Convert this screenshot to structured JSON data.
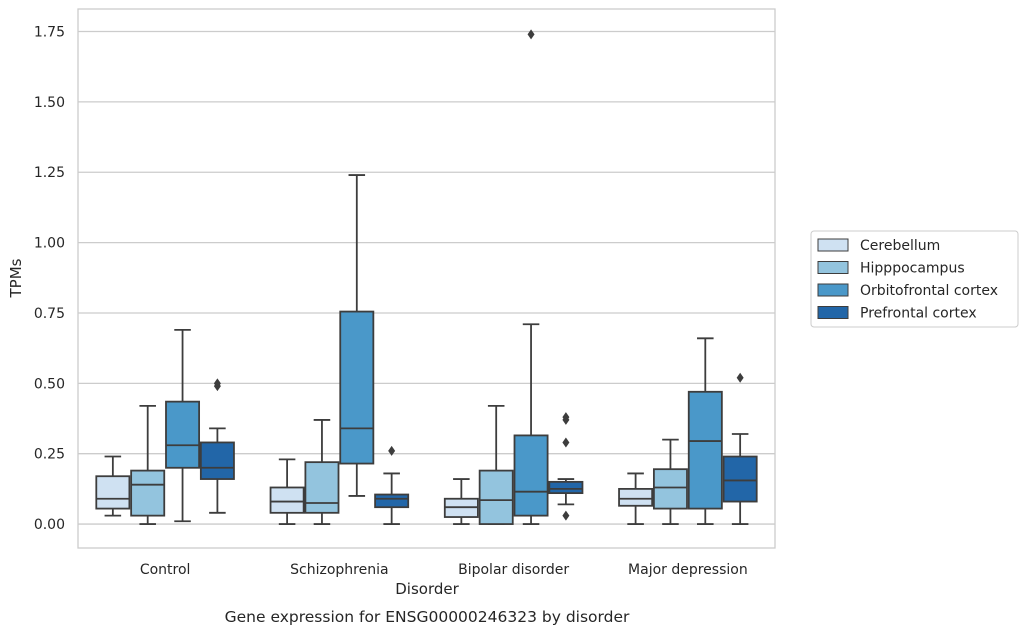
{
  "chart_data": {
    "type": "box",
    "title": "Gene expression for ENSG00000246323 by disorder",
    "xlabel": "Disorder",
    "ylabel": "TPMs",
    "ylim": [
      -0.085,
      1.83
    ],
    "yticks": [
      "0.00",
      "0.25",
      "0.50",
      "0.75",
      "1.00",
      "1.25",
      "1.50",
      "1.75"
    ],
    "grid": "horizontal",
    "legend_position": "right",
    "categories": [
      "Control",
      "Schizophrenia",
      "Bipolar disorder",
      "Major depression"
    ],
    "series": [
      {
        "name": "Cerebellum",
        "color": "#cfe1f2",
        "boxes": [
          {
            "whisker_low": 0.03,
            "q1": 0.055,
            "median": 0.09,
            "q3": 0.17,
            "whisker_high": 0.24,
            "outliers": []
          },
          {
            "whisker_low": 0.0,
            "q1": 0.04,
            "median": 0.08,
            "q3": 0.13,
            "whisker_high": 0.23,
            "outliers": []
          },
          {
            "whisker_low": 0.0,
            "q1": 0.025,
            "median": 0.06,
            "q3": 0.09,
            "whisker_high": 0.16,
            "outliers": []
          },
          {
            "whisker_low": 0.0,
            "q1": 0.065,
            "median": 0.09,
            "q3": 0.125,
            "whisker_high": 0.18,
            "outliers": []
          }
        ]
      },
      {
        "name": "Hipppocampus",
        "color": "#93c4de",
        "boxes": [
          {
            "whisker_low": 0.0,
            "q1": 0.03,
            "median": 0.14,
            "q3": 0.19,
            "whisker_high": 0.42,
            "outliers": []
          },
          {
            "whisker_low": 0.0,
            "q1": 0.04,
            "median": 0.075,
            "q3": 0.22,
            "whisker_high": 0.37,
            "outliers": []
          },
          {
            "whisker_low": 0.0,
            "q1": 0.0,
            "median": 0.085,
            "q3": 0.19,
            "whisker_high": 0.42,
            "outliers": []
          },
          {
            "whisker_low": 0.0,
            "q1": 0.055,
            "median": 0.13,
            "q3": 0.195,
            "whisker_high": 0.3,
            "outliers": []
          }
        ]
      },
      {
        "name": "Orbitofrontal cortex",
        "color": "#4a98c9",
        "boxes": [
          {
            "whisker_low": 0.01,
            "q1": 0.2,
            "median": 0.28,
            "q3": 0.435,
            "whisker_high": 0.69,
            "outliers": []
          },
          {
            "whisker_low": 0.1,
            "q1": 0.215,
            "median": 0.34,
            "q3": 0.755,
            "whisker_high": 1.24,
            "outliers": []
          },
          {
            "whisker_low": 0.0,
            "q1": 0.03,
            "median": 0.115,
            "q3": 0.315,
            "whisker_high": 0.71,
            "outliers": [
              1.74
            ]
          },
          {
            "whisker_low": 0.0,
            "q1": 0.055,
            "median": 0.295,
            "q3": 0.47,
            "whisker_high": 0.66,
            "outliers": []
          }
        ]
      },
      {
        "name": "Prefrontal cortex",
        "color": "#2266a8",
        "boxes": [
          {
            "whisker_low": 0.04,
            "q1": 0.16,
            "median": 0.2,
            "q3": 0.29,
            "whisker_high": 0.34,
            "outliers": [
              0.49,
              0.5
            ]
          },
          {
            "whisker_low": 0.0,
            "q1": 0.06,
            "median": 0.09,
            "q3": 0.105,
            "whisker_high": 0.18,
            "outliers": [
              0.26
            ]
          },
          {
            "whisker_low": 0.07,
            "q1": 0.11,
            "median": 0.125,
            "q3": 0.15,
            "whisker_high": 0.16,
            "outliers": [
              0.03,
              0.29,
              0.37,
              0.38
            ]
          },
          {
            "whisker_low": 0.0,
            "q1": 0.08,
            "median": 0.155,
            "q3": 0.24,
            "whisker_high": 0.32,
            "outliers": [
              0.52
            ]
          }
        ]
      }
    ]
  }
}
